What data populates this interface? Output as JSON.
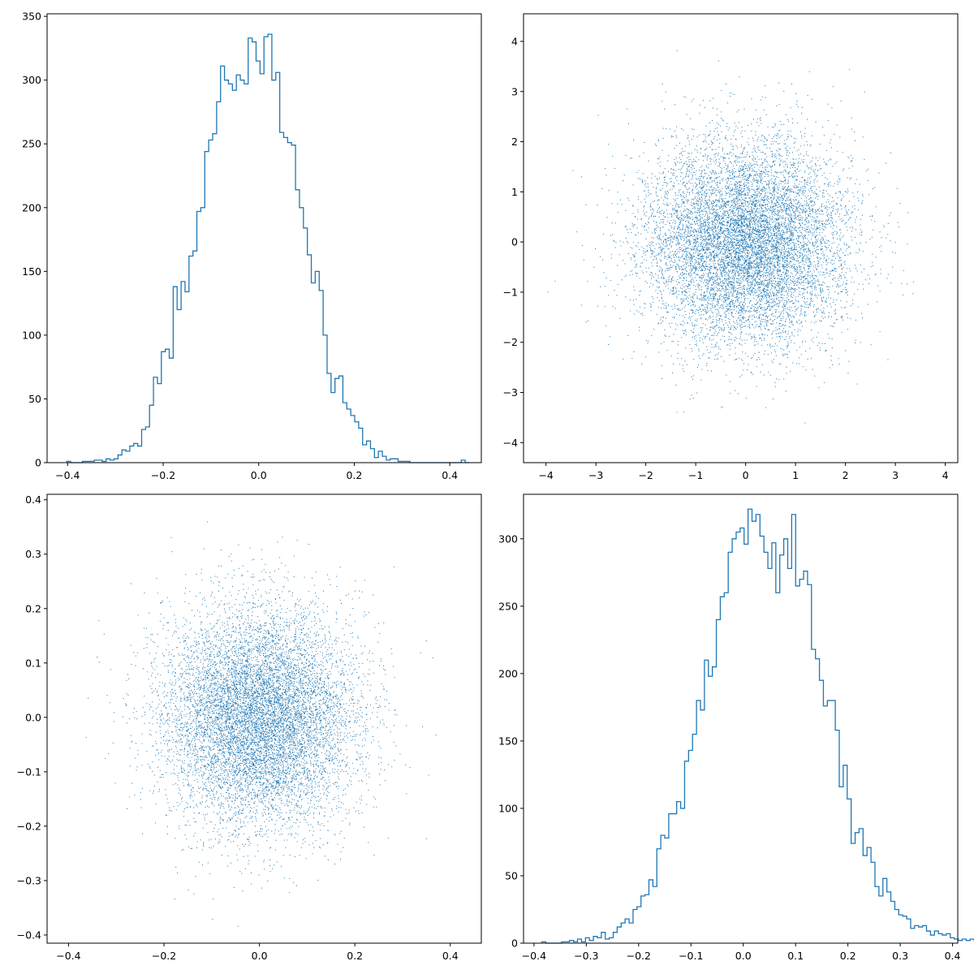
{
  "colors": {
    "series": "#1f77b4",
    "axes": "#000000",
    "background": "#ffffff"
  },
  "chart_data": [
    {
      "panel": "top-left",
      "type": "histogram-step",
      "title": "",
      "xlabel": "",
      "ylabel": "",
      "grid": false,
      "xlim": [
        -0.443,
        0.466
      ],
      "ylim": [
        0,
        352
      ],
      "xticks": [
        -0.4,
        -0.2,
        0.0,
        0.2,
        0.4
      ],
      "xtick_labels": [
        "−0.4",
        "−0.2",
        "0.0",
        "0.2",
        "0.4"
      ],
      "yticks": [
        0,
        50,
        100,
        150,
        200,
        250,
        300,
        350
      ],
      "ytick_labels": [
        "0",
        "50",
        "100",
        "150",
        "200",
        "250",
        "300",
        "350"
      ],
      "bin_start": -0.402,
      "bin_width": 0.00826,
      "counts": [
        1,
        0,
        0,
        0,
        1,
        1,
        1,
        2,
        2,
        1,
        3,
        2,
        3,
        6,
        10,
        9,
        13,
        15,
        13,
        26,
        28,
        45,
        67,
        62,
        87,
        89,
        82,
        138,
        120,
        142,
        134,
        162,
        166,
        197,
        200,
        244,
        253,
        258,
        283,
        311,
        300,
        297,
        292,
        304,
        300,
        297,
        333,
        330,
        315,
        305,
        334,
        336,
        300,
        306,
        259,
        255,
        251,
        249,
        214,
        200,
        184,
        163,
        141,
        150,
        135,
        100,
        70,
        55,
        66,
        68,
        47,
        42,
        37,
        32,
        27,
        14,
        17,
        11,
        4,
        9,
        5,
        2,
        3,
        3,
        1,
        1,
        1,
        0,
        0,
        0,
        0,
        0,
        0,
        0,
        0,
        0,
        0,
        0,
        0,
        0,
        2,
        0
      ]
    },
    {
      "panel": "top-right",
      "type": "scatter",
      "title": "",
      "xlabel": "",
      "ylabel": "",
      "grid": false,
      "xlim": [
        -4.45,
        4.25
      ],
      "ylim": [
        -4.4,
        4.55
      ],
      "xticks": [
        -4,
        -3,
        -2,
        -1,
        0,
        1,
        2,
        3,
        4
      ],
      "xtick_labels": [
        "−4",
        "−3",
        "−2",
        "−1",
        "0",
        "1",
        "2",
        "3",
        "4"
      ],
      "yticks": [
        -4,
        -3,
        -2,
        -1,
        0,
        1,
        2,
        3,
        4
      ],
      "ytick_labels": [
        "−4",
        "−3",
        "−2",
        "−1",
        "0",
        "1",
        "2",
        "3",
        "4"
      ],
      "marker": "pixel",
      "distribution": {
        "n": 10000,
        "x_mean": 0.0,
        "x_sd": 1.0,
        "y_mean": 0.0,
        "y_sd": 1.0,
        "seed": 11
      }
    },
    {
      "panel": "bottom-left",
      "type": "scatter",
      "title": "",
      "xlabel": "",
      "ylabel": "",
      "grid": false,
      "xlim": [
        -0.445,
        0.465
      ],
      "ylim": [
        -0.415,
        0.41
      ],
      "xticks": [
        -0.4,
        -0.2,
        0.0,
        0.2,
        0.4
      ],
      "xtick_labels": [
        "−0.4",
        "−0.2",
        "0.0",
        "0.2",
        "0.4"
      ],
      "yticks": [
        -0.4,
        -0.3,
        -0.2,
        -0.1,
        0.0,
        0.1,
        0.2,
        0.3,
        0.4
      ],
      "ytick_labels": [
        "−0.4",
        "−0.3",
        "−0.2",
        "−0.1",
        "0.0",
        "0.1",
        "0.2",
        "0.3",
        "0.4"
      ],
      "marker": "pixel",
      "distribution": {
        "n": 10000,
        "x_mean": 0.0,
        "x_sd": 0.1,
        "y_mean": 0.0,
        "y_sd": 0.1,
        "seed": 29
      }
    },
    {
      "panel": "bottom-right",
      "type": "histogram-step",
      "title": "",
      "xlabel": "",
      "ylabel": "",
      "grid": false,
      "xlim": [
        -0.42,
        0.41
      ],
      "ylim": [
        0,
        333
      ],
      "xticks": [
        -0.4,
        -0.3,
        -0.2,
        -0.1,
        0.0,
        0.1,
        0.2,
        0.3,
        0.4
      ],
      "xtick_labels": [
        "−0.4",
        "−0.3",
        "−0.2",
        "−0.1",
        "0.0",
        "0.1",
        "0.2",
        "0.3",
        "0.4"
      ],
      "yticks": [
        0,
        50,
        100,
        150,
        200,
        250,
        300
      ],
      "ytick_labels": [
        "0",
        "50",
        "100",
        "150",
        "200",
        "250",
        "300"
      ],
      "bin_start": -0.385,
      "bin_width": 0.00758,
      "counts": [
        1,
        0,
        0,
        0,
        0,
        1,
        1,
        2,
        1,
        3,
        1,
        4,
        2,
        5,
        4,
        8,
        3,
        4,
        8,
        12,
        15,
        18,
        15,
        25,
        27,
        35,
        36,
        47,
        42,
        70,
        80,
        78,
        96,
        96,
        105,
        100,
        135,
        143,
        155,
        180,
        173,
        210,
        198,
        205,
        240,
        257,
        260,
        290,
        300,
        305,
        308,
        296,
        322,
        313,
        318,
        302,
        290,
        278,
        297,
        260,
        288,
        300,
        278,
        318,
        265,
        270,
        276,
        266,
        218,
        211,
        195,
        176,
        180,
        180,
        158,
        116,
        132,
        107,
        74,
        82,
        85,
        65,
        71,
        60,
        42,
        35,
        48,
        38,
        31,
        25,
        21,
        20,
        18,
        11,
        13,
        12,
        13,
        9,
        6,
        9,
        7,
        6,
        7,
        4,
        3,
        2,
        3,
        2,
        3,
        2,
        1,
        1,
        1
      ]
    }
  ]
}
